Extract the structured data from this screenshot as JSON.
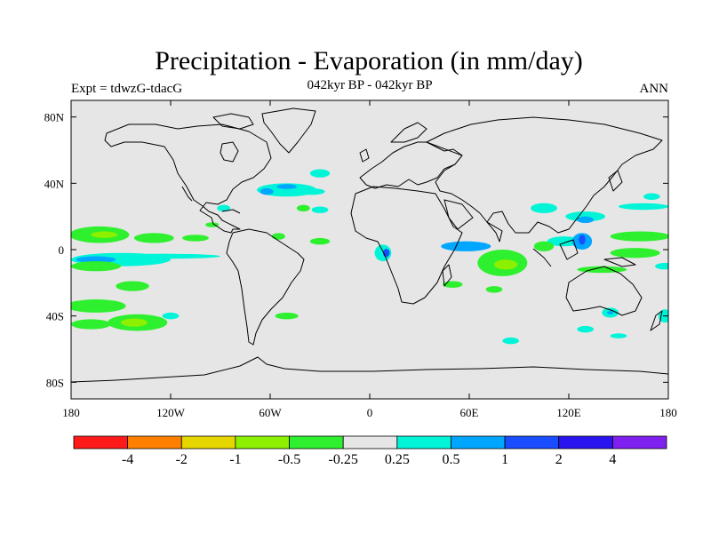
{
  "title": "Precipitation - Evaporation (in mm/day)",
  "subtitle_left": "Expt = tdwzG-tdacG",
  "subtitle_center": "042kyr BP - 042kyr BP",
  "subtitle_right": "ANN",
  "colors": {
    "land_ocean_background": "#e6e6e6",
    "coastline": "#000000"
  },
  "axes": {
    "lat_ticks": [
      {
        "value": 80,
        "label": "80N"
      },
      {
        "value": 40,
        "label": "40N"
      },
      {
        "value": 0,
        "label": "0"
      },
      {
        "value": -40,
        "label": "40S"
      },
      {
        "value": -80,
        "label": "80S"
      }
    ],
    "lon_ticks": [
      {
        "value": -180,
        "label": "180"
      },
      {
        "value": -120,
        "label": "120W"
      },
      {
        "value": -60,
        "label": "60W"
      },
      {
        "value": 0,
        "label": "0"
      },
      {
        "value": 60,
        "label": "60E"
      },
      {
        "value": 120,
        "label": "120E"
      },
      {
        "value": 180,
        "label": "180"
      }
    ],
    "lon_range": [
      -180,
      180
    ],
    "lat_range": [
      -90,
      90
    ]
  },
  "colorbar": {
    "colors": [
      "#ff1a1a",
      "#ff8000",
      "#e6d600",
      "#8cf000",
      "#2ef02e",
      "#e6e6e6",
      "#00f5d8",
      "#00a6ff",
      "#1a4dff",
      "#2a14f0",
      "#8020f0"
    ],
    "labels": [
      "-4",
      "-2",
      "-1",
      "-0.5",
      "-0.25",
      "0.25",
      "0.5",
      "1",
      "2",
      "4"
    ]
  },
  "chart_data": {
    "type": "heatmap",
    "title": "Precipitation - Evaporation (in mm/day)",
    "xlabel": "",
    "ylabel": "",
    "xlim": [
      -180,
      180
    ],
    "ylim": [
      -90,
      90
    ],
    "levels": [
      -4,
      -2,
      -1,
      -0.5,
      -0.25,
      0.25,
      0.5,
      1,
      2,
      4
    ],
    "regions": [
      {
        "lon": -163,
        "lat": 9,
        "rx": 18,
        "ry": 5,
        "value": -0.5
      },
      {
        "lon": -160,
        "lat": 9,
        "rx": 8,
        "ry": 2,
        "value": -1
      },
      {
        "lon": -130,
        "lat": 7,
        "rx": 12,
        "ry": 3,
        "value": -0.35
      },
      {
        "lon": -105,
        "lat": 7,
        "rx": 8,
        "ry": 2,
        "value": -0.35
      },
      {
        "lon": -150,
        "lat": -6,
        "rx": 30,
        "ry": 4,
        "value": 0.35
      },
      {
        "lon": -165,
        "lat": -6,
        "rx": 12,
        "ry": 2,
        "value": 0.7
      },
      {
        "lon": -125,
        "lat": -4,
        "rx": 35,
        "ry": 1.5,
        "value": 0.35
      },
      {
        "lon": -165,
        "lat": -10,
        "rx": 15,
        "ry": 3,
        "value": -0.35
      },
      {
        "lon": -165,
        "lat": -34,
        "rx": 18,
        "ry": 4,
        "value": -0.35
      },
      {
        "lon": -168,
        "lat": -45,
        "rx": 12,
        "ry": 3,
        "value": -0.5
      },
      {
        "lon": -140,
        "lat": -44,
        "rx": 18,
        "ry": 5,
        "value": -0.35
      },
      {
        "lon": -142,
        "lat": -44,
        "rx": 8,
        "ry": 2.5,
        "value": -0.7
      },
      {
        "lon": -143,
        "lat": -22,
        "rx": 10,
        "ry": 3,
        "value": -0.35
      },
      {
        "lon": -120,
        "lat": -40,
        "rx": 5,
        "ry": 2,
        "value": 0.35
      },
      {
        "lon": -50,
        "lat": 36,
        "rx": 18,
        "ry": 4,
        "value": 0.35
      },
      {
        "lon": -62,
        "lat": 35,
        "rx": 4,
        "ry": 2,
        "value": 0.7
      },
      {
        "lon": -50,
        "lat": 38,
        "rx": 6,
        "ry": 1.5,
        "value": 0.7
      },
      {
        "lon": -30,
        "lat": 46,
        "rx": 6,
        "ry": 2.5,
        "value": 0.35
      },
      {
        "lon": -35,
        "lat": 35,
        "rx": 8,
        "ry": 2,
        "value": 0.35
      },
      {
        "lon": -30,
        "lat": 24,
        "rx": 5,
        "ry": 2,
        "value": 0.35
      },
      {
        "lon": -40,
        "lat": 25,
        "rx": 4,
        "ry": 2,
        "value": -0.35
      },
      {
        "lon": -88,
        "lat": 25,
        "rx": 4,
        "ry": 2,
        "value": 0.35
      },
      {
        "lon": -95,
        "lat": 15,
        "rx": 4,
        "ry": 1.5,
        "value": -0.35
      },
      {
        "lon": -55,
        "lat": 8,
        "rx": 4,
        "ry": 2,
        "value": -0.35
      },
      {
        "lon": -30,
        "lat": 5,
        "rx": 6,
        "ry": 2,
        "value": -0.35
      },
      {
        "lon": -50,
        "lat": -40,
        "rx": 7,
        "ry": 2,
        "value": -0.35
      },
      {
        "lon": 8,
        "lat": -2,
        "rx": 5,
        "ry": 5,
        "value": 0.35
      },
      {
        "lon": 10,
        "lat": -2,
        "rx": 2,
        "ry": 2.5,
        "value": 1
      },
      {
        "lon": 58,
        "lat": 2,
        "rx": 15,
        "ry": 3,
        "value": 0.7
      },
      {
        "lon": 80,
        "lat": -8,
        "rx": 15,
        "ry": 8,
        "value": -0.35
      },
      {
        "lon": 82,
        "lat": -9,
        "rx": 7,
        "ry": 3,
        "value": -0.7
      },
      {
        "lon": 75,
        "lat": -24,
        "rx": 5,
        "ry": 2,
        "value": -0.35
      },
      {
        "lon": 50,
        "lat": -21,
        "rx": 6,
        "ry": 2,
        "value": -0.35
      },
      {
        "lon": 105,
        "lat": 25,
        "rx": 8,
        "ry": 3,
        "value": 0.35
      },
      {
        "lon": 130,
        "lat": 20,
        "rx": 12,
        "ry": 3,
        "value": 0.35
      },
      {
        "lon": 130,
        "lat": 18,
        "rx": 5,
        "ry": 2,
        "value": 0.7
      },
      {
        "lon": 117,
        "lat": 5,
        "rx": 10,
        "ry": 3,
        "value": 0.35
      },
      {
        "lon": 105,
        "lat": 2,
        "rx": 6,
        "ry": 3,
        "value": -0.35
      },
      {
        "lon": 128,
        "lat": 5,
        "rx": 6,
        "ry": 5,
        "value": 0.7
      },
      {
        "lon": 128,
        "lat": 6,
        "rx": 2,
        "ry": 3,
        "value": 1
      },
      {
        "lon": 163,
        "lat": 8,
        "rx": 18,
        "ry": 3,
        "value": -0.35
      },
      {
        "lon": 165,
        "lat": 26,
        "rx": 15,
        "ry": 2,
        "value": 0.35
      },
      {
        "lon": 170,
        "lat": 32,
        "rx": 5,
        "ry": 2,
        "value": 0.35
      },
      {
        "lon": 160,
        "lat": -2,
        "rx": 15,
        "ry": 3,
        "value": -0.35
      },
      {
        "lon": 140,
        "lat": -12,
        "rx": 15,
        "ry": 2,
        "value": -0.35
      },
      {
        "lon": 178,
        "lat": -10,
        "rx": 6,
        "ry": 2,
        "value": 0.35
      },
      {
        "lon": 145,
        "lat": -38,
        "rx": 5,
        "ry": 3,
        "value": 0.35
      },
      {
        "lon": 145,
        "lat": -38,
        "rx": 2,
        "ry": 1,
        "value": 0.7
      },
      {
        "lon": 178,
        "lat": -40,
        "rx": 4,
        "ry": 4,
        "value": 0.35
      },
      {
        "lon": 85,
        "lat": -55,
        "rx": 5,
        "ry": 2,
        "value": 0.35
      },
      {
        "lon": 130,
        "lat": -48,
        "rx": 5,
        "ry": 2,
        "value": 0.35
      },
      {
        "lon": 150,
        "lat": -52,
        "rx": 5,
        "ry": 1.5,
        "value": 0.35
      }
    ]
  }
}
